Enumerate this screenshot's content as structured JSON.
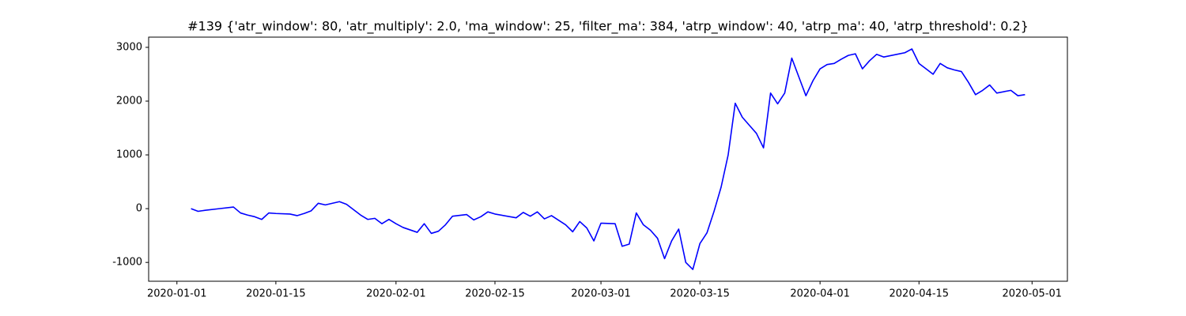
{
  "chart_data": {
    "type": "line",
    "title": "#139 {'atr_window': 80, 'atr_multiply': 2.0, 'ma_window': 25, 'filter_ma': 384, 'atrp_window': 40, 'atrp_ma': 40, 'atrp_threshold': 0.2}",
    "x": [
      "2020-01-03",
      "2020-01-04",
      "2020-01-05",
      "2020-01-07",
      "2020-01-09",
      "2020-01-10",
      "2020-01-11",
      "2020-01-12",
      "2020-01-13",
      "2020-01-14",
      "2020-01-15",
      "2020-01-17",
      "2020-01-18",
      "2020-01-19",
      "2020-01-20",
      "2020-01-21",
      "2020-01-22",
      "2020-01-24",
      "2020-01-25",
      "2020-01-27",
      "2020-01-28",
      "2020-01-29",
      "2020-01-30",
      "2020-01-31",
      "2020-02-01",
      "2020-02-02",
      "2020-02-04",
      "2020-02-05",
      "2020-02-06",
      "2020-02-07",
      "2020-02-08",
      "2020-02-09",
      "2020-02-11",
      "2020-02-12",
      "2020-02-13",
      "2020-02-14",
      "2020-02-15",
      "2020-02-18",
      "2020-02-19",
      "2020-02-20",
      "2020-02-21",
      "2020-02-22",
      "2020-02-23",
      "2020-02-25",
      "2020-02-26",
      "2020-02-27",
      "2020-02-28",
      "2020-02-29",
      "2020-03-01",
      "2020-03-03",
      "2020-03-04",
      "2020-03-05",
      "2020-03-06",
      "2020-03-07",
      "2020-03-08",
      "2020-03-09",
      "2020-03-10",
      "2020-03-11",
      "2020-03-12",
      "2020-03-13",
      "2020-03-14",
      "2020-03-15",
      "2020-03-16",
      "2020-03-17",
      "2020-03-18",
      "2020-03-19",
      "2020-03-20",
      "2020-03-21",
      "2020-03-22",
      "2020-03-23",
      "2020-03-24",
      "2020-03-25",
      "2020-03-26",
      "2020-03-27",
      "2020-03-28",
      "2020-03-29",
      "2020-03-30",
      "2020-03-31",
      "2020-04-01",
      "2020-04-02",
      "2020-04-03",
      "2020-04-04",
      "2020-04-05",
      "2020-04-06",
      "2020-04-07",
      "2020-04-08",
      "2020-04-09",
      "2020-04-10",
      "2020-04-13",
      "2020-04-14",
      "2020-04-15",
      "2020-04-16",
      "2020-04-17",
      "2020-04-18",
      "2020-04-19",
      "2020-04-20",
      "2020-04-21",
      "2020-04-22",
      "2020-04-23",
      "2020-04-24",
      "2020-04-25",
      "2020-04-26",
      "2020-04-28",
      "2020-04-29",
      "2020-04-30"
    ],
    "series": [
      {
        "color": "#0000ff",
        "values": [
          0,
          -50,
          -30,
          0,
          30,
          -80,
          -120,
          -150,
          -200,
          -80,
          -90,
          -100,
          -130,
          -90,
          -40,
          100,
          70,
          130,
          80,
          -120,
          -200,
          -180,
          -280,
          -200,
          -280,
          -350,
          -440,
          -280,
          -460,
          -420,
          -300,
          -140,
          -110,
          -210,
          -150,
          -60,
          -100,
          -170,
          -70,
          -140,
          -60,
          -190,
          -130,
          -300,
          -430,
          -240,
          -360,
          -600,
          -270,
          -280,
          -700,
          -660,
          -80,
          -300,
          -400,
          -550,
          -930,
          -600,
          -380,
          -1000,
          -1130,
          -650,
          -450,
          -50,
          400,
          1000,
          1960,
          1700,
          1550,
          1400,
          1130,
          2150,
          1950,
          2150,
          2800,
          2450,
          2100,
          2380,
          2600,
          2680,
          2700,
          2780,
          2850,
          2880,
          2600,
          2750,
          2870,
          2820,
          2900,
          2970,
          2700,
          2600,
          2500,
          2700,
          2620,
          2580,
          2550,
          2350,
          2120,
          2200,
          2300,
          2150,
          2200,
          2100,
          2120
        ]
      }
    ],
    "xlim": [
      "2019-12-28",
      "2020-05-06"
    ],
    "xticks": [
      "2020-01-01",
      "2020-01-15",
      "2020-02-01",
      "2020-02-15",
      "2020-03-01",
      "2020-03-15",
      "2020-04-01",
      "2020-04-15",
      "2020-05-01"
    ],
    "ylim": [
      -1350,
      3190
    ],
    "yticks": [
      -1000,
      0,
      1000,
      2000,
      3000
    ]
  }
}
